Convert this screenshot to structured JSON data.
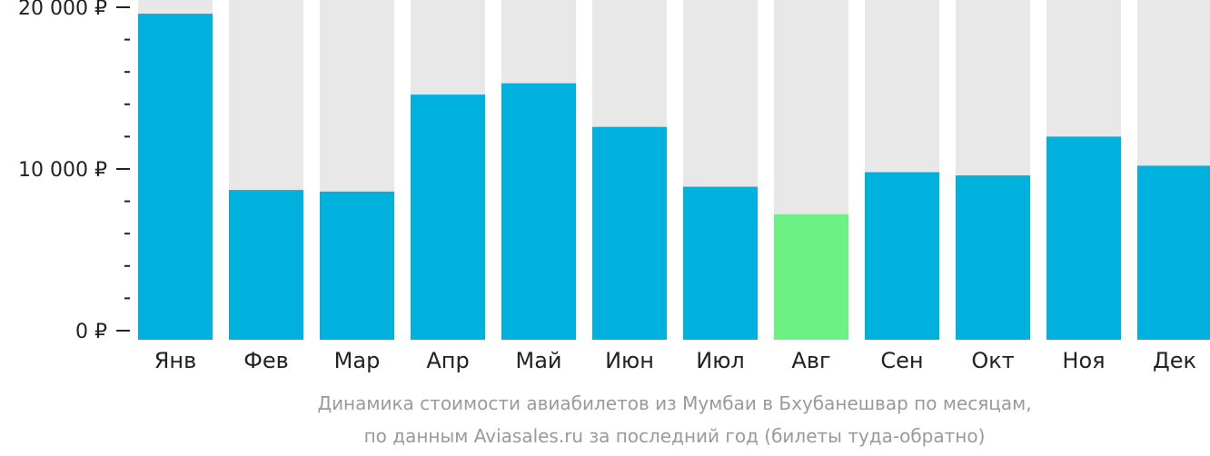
{
  "chart_data": {
    "type": "bar",
    "categories": [
      "Янв",
      "Фев",
      "Мар",
      "Апр",
      "Май",
      "Июн",
      "Июл",
      "Авг",
      "Сен",
      "Окт",
      "Ноя",
      "Дек"
    ],
    "values": [
      19600,
      8700,
      8600,
      14600,
      15300,
      12600,
      8900,
      7200,
      9800,
      9600,
      12000,
      10200
    ],
    "ylim": [
      0,
      20000
    ],
    "y_ticks": [
      0,
      10000,
      20000
    ],
    "y_tick_labels": [
      "0 ₽",
      "10 000 ₽",
      "20 000 ₽"
    ],
    "minor_ticks_between": 4,
    "highlight_index": 7,
    "colors": {
      "bar": "#00b0dd",
      "highlight": "#6cf185",
      "track": "#e8e8e8",
      "axis": "#222222",
      "caption": "#9a9a9a"
    },
    "caption_line1": "Динамика стоимости авиабилетов из Мумбаи в Бхубанешвар по месяцам,",
    "caption_line2": "по данным Aviasales.ru за последний год (билеты туда-обратно)"
  }
}
